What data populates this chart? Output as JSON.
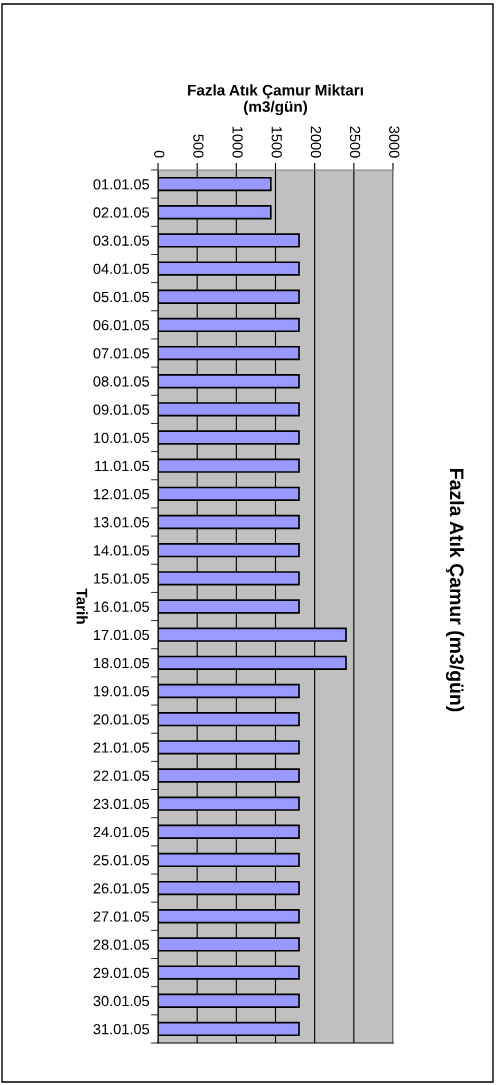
{
  "chart_data": {
    "type": "bar",
    "orientation": "horizontal",
    "title": "Fazla Atık Çamur (m3/gün)",
    "xlabel": "Fazla Atık Çamur Miktarı\n(m3/gün)",
    "ylabel": "Tarih",
    "categories": [
      "01.01.05",
      "02.01.05",
      "03.01.05",
      "04.01.05",
      "05.01.05",
      "06.01.05",
      "07.01.05",
      "08.01.05",
      "09.01.05",
      "10.01.05",
      "11.01.05",
      "12.01.05",
      "13.01.05",
      "14.01.05",
      "15.01.05",
      "16.01.05",
      "17.01.05",
      "18.01.05",
      "19.01.05",
      "20.01.05",
      "21.01.05",
      "22.01.05",
      "23.01.05",
      "24.01.05",
      "25.01.05",
      "26.01.05",
      "27.01.05",
      "28.01.05",
      "29.01.05",
      "30.01.05",
      "31.01.05"
    ],
    "values": [
      1440,
      1440,
      1800,
      1800,
      1800,
      1800,
      1800,
      1800,
      1800,
      1800,
      1800,
      1800,
      1800,
      1800,
      1800,
      1800,
      2400,
      2400,
      1800,
      1800,
      1800,
      1800,
      1800,
      1800,
      1800,
      1800,
      1800,
      1800,
      1800,
      1800,
      1800
    ],
    "color": "#9999ff",
    "xlim": [
      0,
      3000
    ],
    "xticks": [
      0,
      500,
      1000,
      1500,
      2000,
      2500,
      3000
    ],
    "grid": "x"
  }
}
